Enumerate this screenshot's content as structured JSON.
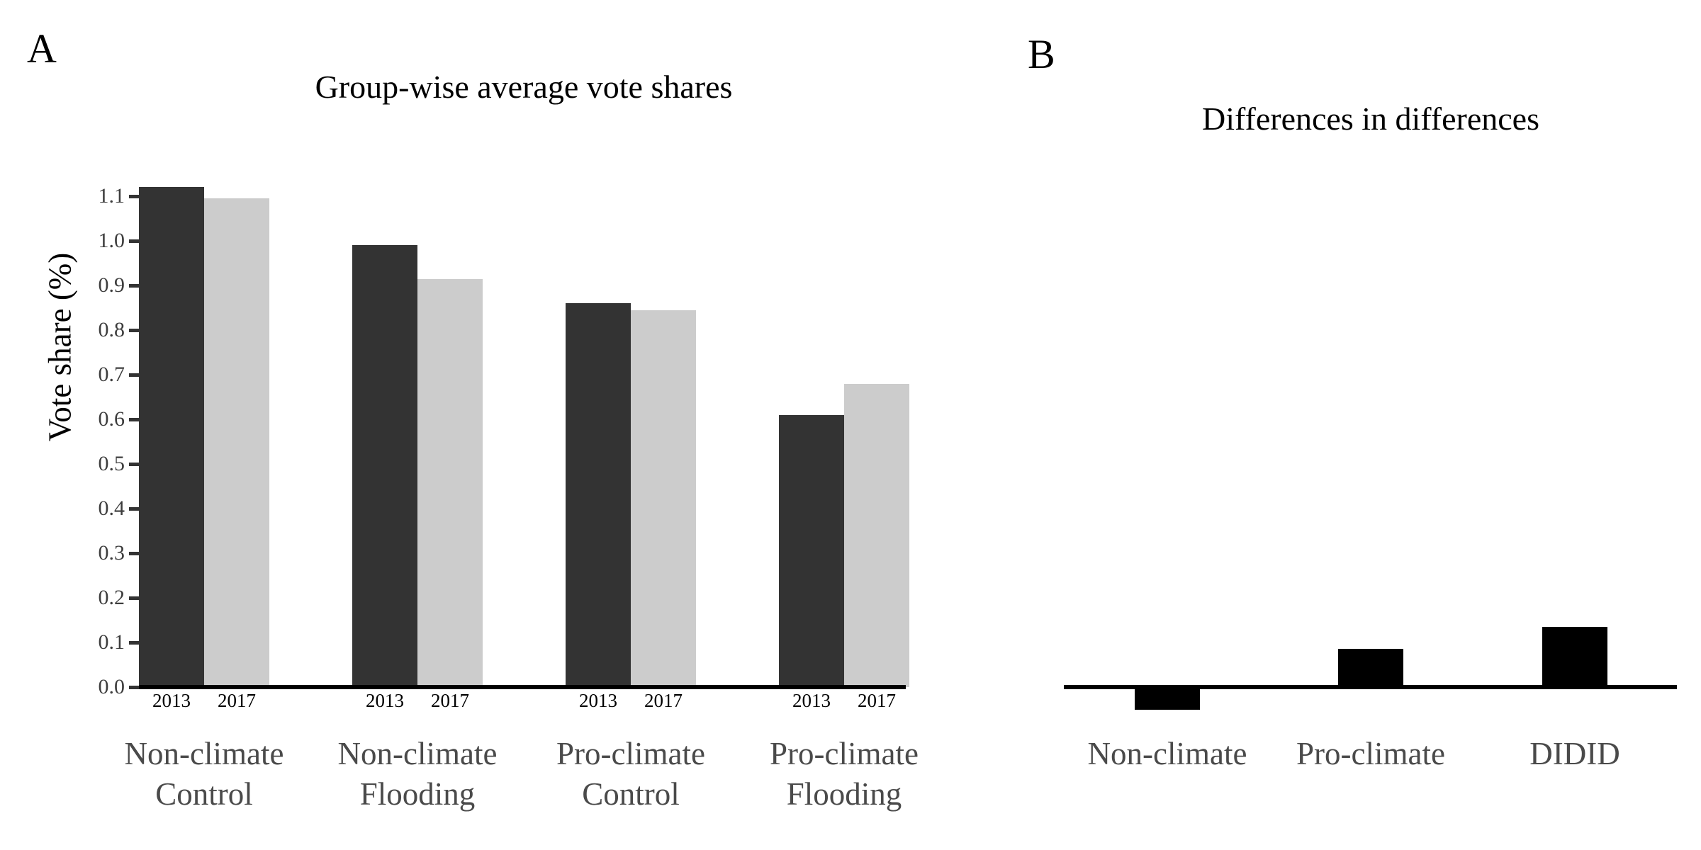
{
  "figure": {
    "background": "#ffffff"
  },
  "panels": {
    "a": {
      "letter": "A",
      "title": "Group-wise average vote shares",
      "ylabel": "Vote share (%)"
    },
    "b": {
      "letter": "B",
      "title": "Differences in differences"
    }
  },
  "colors": {
    "bar_2013": "#333333",
    "bar_2017": "#cccccc",
    "bar_panel_b": "#000000",
    "axis_line": "#000000",
    "tick_mark": "#333333",
    "tick_label": "#3d3d3d",
    "group_label": "#4a4a4a",
    "year_label": "#000000"
  },
  "chart_data": [
    {
      "type": "bar",
      "panel": "A",
      "title": "Group-wise average vote shares",
      "xlabel": "",
      "ylabel": "Vote share (%)",
      "ylim": [
        0.0,
        1.15
      ],
      "yticks": [
        0.0,
        0.1,
        0.2,
        0.3,
        0.4,
        0.5,
        0.6,
        0.7,
        0.8,
        0.9,
        1.0,
        1.1
      ],
      "grid": false,
      "legend_position": "none",
      "categories": [
        "Non-climate Control",
        "Non-climate Flooding",
        "Pro-climate Control",
        "Pro-climate Flooding"
      ],
      "categories_lines": [
        [
          "Non-climate",
          "Control"
        ],
        [
          "Non-climate",
          "Flooding"
        ],
        [
          "Pro-climate",
          "Control"
        ],
        [
          "Pro-climate",
          "Flooding"
        ]
      ],
      "series": [
        {
          "name": "2013",
          "values": [
            1.12,
            0.99,
            0.86,
            0.61
          ]
        },
        {
          "name": "2017",
          "values": [
            1.095,
            0.915,
            0.845,
            0.68
          ]
        }
      ]
    },
    {
      "type": "bar",
      "panel": "B",
      "title": "Differences in differences",
      "xlabel": "",
      "ylabel": "",
      "baseline": 0,
      "grid": false,
      "categories": [
        "Non-climate",
        "Pro-climate",
        "DIDID"
      ],
      "values": [
        -0.05,
        0.085,
        0.135
      ]
    }
  ]
}
